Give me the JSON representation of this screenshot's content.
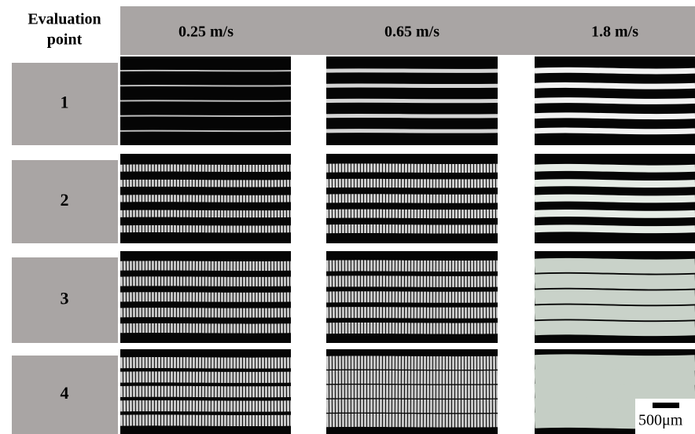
{
  "header": {
    "title_line1": "Evaluation",
    "title_line2": "point",
    "columns": [
      "0.25 m/s",
      "0.65 m/s",
      "1.8 m/s"
    ]
  },
  "rows": [
    "1",
    "2",
    "3",
    "4"
  ],
  "scale_bar": "500μm"
}
